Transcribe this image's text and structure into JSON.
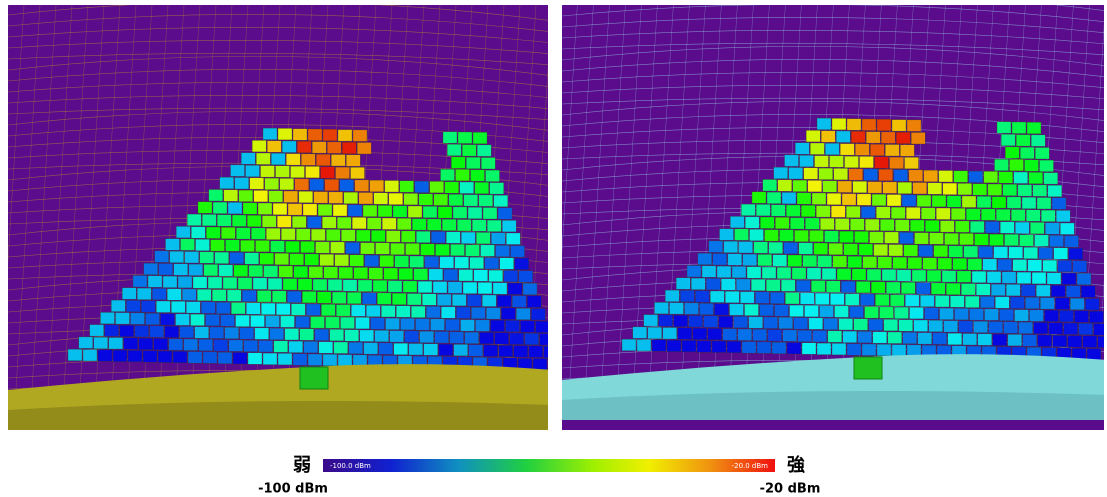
{
  "colorbar": {
    "weak_label": "弱",
    "strong_label": "強",
    "min_inner_label": "-100.0 dBm",
    "max_inner_label": "-20.0 dBm",
    "min_label": "-100 dBm",
    "max_label": "-20 dBm"
  }
}
